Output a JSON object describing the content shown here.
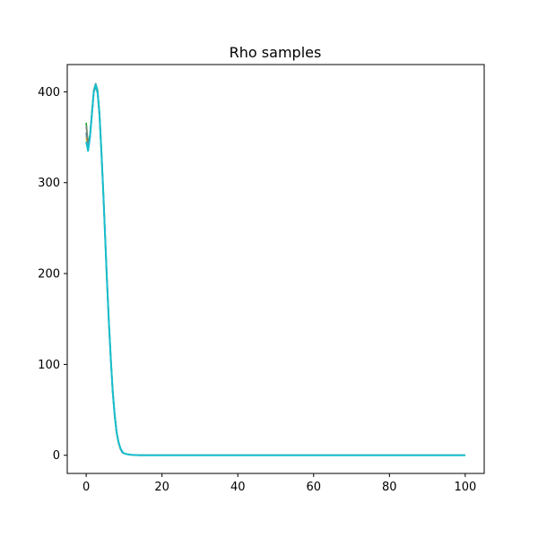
{
  "chart_data": {
    "type": "line",
    "title": "Rho samples",
    "xlabel": "",
    "ylabel": "",
    "xlim": [
      -5,
      105
    ],
    "ylim": [
      -20,
      430
    ],
    "xticks": [
      0,
      20,
      40,
      60,
      80,
      100
    ],
    "yticks": [
      0,
      100,
      200,
      300,
      400
    ],
    "grid": false,
    "legend": "none",
    "colors": {
      "series": [
        "#17becf",
        "#7f7f7f",
        "#bcbd22",
        "#2ca02c",
        "#1f77b4"
      ],
      "axes": "#000000",
      "background": "#ffffff"
    },
    "x": [
      0,
      0.5,
      1,
      1.5,
      2,
      2.5,
      3,
      3.5,
      4,
      4.5,
      5,
      5.5,
      6,
      6.5,
      7,
      7.5,
      8,
      8.5,
      9,
      9.5,
      10,
      11,
      12,
      13,
      14,
      15,
      20,
      30,
      40,
      50,
      60,
      70,
      80,
      90,
      100
    ],
    "series": [
      {
        "values": [
          345,
          335,
          350,
          375,
          400,
          408,
          400,
          375,
          335,
          290,
          240,
          190,
          145,
          105,
          70,
          45,
          26,
          15,
          8,
          4,
          2,
          1,
          0.5,
          0.3,
          0,
          0,
          0,
          0,
          0,
          0,
          0,
          0,
          0,
          0,
          0
        ]
      },
      {
        "values": [
          362,
          340,
          352,
          377,
          401,
          409,
          401,
          377,
          336,
          291,
          241,
          191,
          146,
          106,
          71,
          45,
          26,
          15,
          8,
          4,
          2,
          1,
          0.5,
          0.3,
          0,
          0,
          0,
          0,
          0,
          0,
          0,
          0,
          0,
          0,
          0
        ]
      },
      {
        "values": [
          350,
          337,
          351,
          376,
          400,
          407,
          399,
          374,
          334,
          289,
          239,
          189,
          144,
          104,
          69,
          44,
          25,
          14,
          7,
          4,
          2,
          1,
          0.5,
          0.2,
          0,
          0,
          0,
          0,
          0,
          0,
          0,
          0,
          0,
          0,
          0
        ]
      },
      {
        "values": [
          366,
          342,
          353,
          378,
          402,
          409,
          402,
          378,
          337,
          292,
          242,
          192,
          147,
          107,
          72,
          46,
          27,
          15,
          8,
          4,
          2,
          1,
          0.5,
          0.3,
          0,
          0,
          0,
          0,
          0,
          0,
          0,
          0,
          0,
          0,
          0
        ]
      },
      {
        "values": [
          355,
          336,
          350,
          374,
          399,
          406,
          398,
          373,
          333,
          288,
          238,
          188,
          143,
          103,
          68,
          43,
          25,
          14,
          7,
          3,
          2,
          1,
          0.4,
          0.2,
          0,
          0,
          0,
          0,
          0,
          0,
          0,
          0,
          0,
          0,
          0
        ]
      }
    ]
  }
}
